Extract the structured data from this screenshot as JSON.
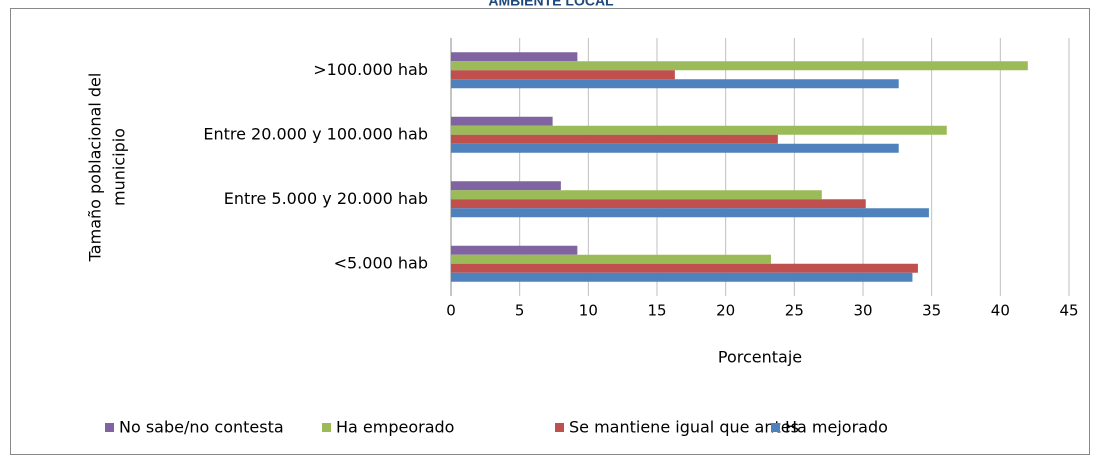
{
  "chart_data": {
    "type": "hbar",
    "title": "AMBIENTE LOCAL",
    "categories": [
      ">100.000 hab",
      "Entre 20.000 y 100.000 hab",
      "Entre 5.000 y 20.000 hab",
      "<5.000 hab"
    ],
    "series": [
      {
        "name": "No sabe/no contesta",
        "color": "#8064a2",
        "values": [
          9.2,
          7.4,
          8.0,
          9.2
        ]
      },
      {
        "name": "Ha empeorado",
        "color": "#9bbb59",
        "values": [
          42.0,
          36.1,
          27.0,
          23.3
        ]
      },
      {
        "name": "Se mantiene igual que antes",
        "color": "#c0504d",
        "values": [
          16.3,
          23.8,
          30.2,
          34.0
        ]
      },
      {
        "name": "Ha mejorado",
        "color": "#4f81bd",
        "values": [
          32.6,
          32.6,
          34.8,
          33.6
        ]
      }
    ],
    "xlabel": "Porcentaje",
    "ylabel": [
      "Tamaño poblacional del",
      "municipio"
    ],
    "xlim": [
      0,
      45
    ],
    "xticks": [
      0,
      5,
      10,
      15,
      20,
      25,
      30,
      35,
      40,
      45
    ],
    "grid": true,
    "legend": "bottom"
  }
}
